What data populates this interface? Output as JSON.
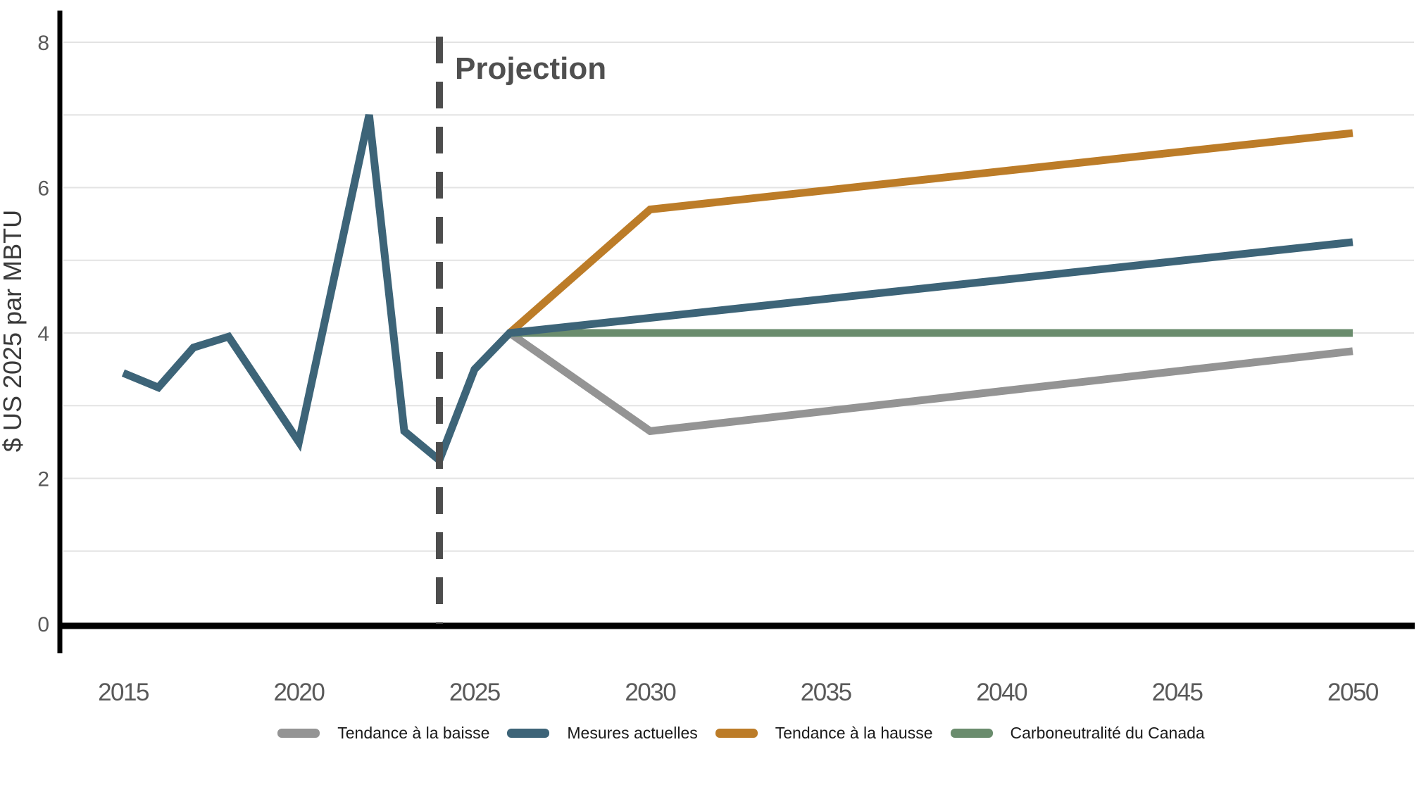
{
  "chart_data": {
    "type": "line",
    "title": "",
    "xlabel": "",
    "ylabel": "$ US 2025 par MBTU",
    "ylim": [
      0,
      8.4
    ],
    "xlim": [
      2013.3,
      2051.7
    ],
    "yticks": [
      0,
      2,
      4,
      6,
      8
    ],
    "gridline_values": [
      1,
      2,
      3,
      4,
      5,
      6,
      7,
      8
    ],
    "xticks": [
      2015,
      2020,
      2025,
      2030,
      2035,
      2040,
      2045,
      2050
    ],
    "grid": "horizontal",
    "legend_position": "bottom",
    "annotation": {
      "label": "Projection",
      "x": 2024,
      "style": "dashed-vertical-line"
    },
    "series": [
      {
        "name": "Tendance à la baisse",
        "color": "#949494",
        "x": [
          2026,
          2030,
          2050
        ],
        "y": [
          4.0,
          2.65,
          3.75
        ]
      },
      {
        "name": "Carboneutralité du Canada",
        "color": "#6A8C6D",
        "x": [
          2026,
          2050
        ],
        "y": [
          4.0,
          4.0
        ]
      },
      {
        "name": "Tendance à la hausse",
        "color": "#BC7C28",
        "x": [
          2026,
          2030,
          2050
        ],
        "y": [
          4.0,
          5.7,
          6.75
        ]
      },
      {
        "name": "Mesures actuelles",
        "color": "#3D6478",
        "x": [
          2015,
          2016,
          2017,
          2018,
          2020,
          2022,
          2023,
          2024,
          2025,
          2026,
          2050
        ],
        "y": [
          3.45,
          3.25,
          3.8,
          3.95,
          2.5,
          7.0,
          2.65,
          2.25,
          3.5,
          4.0,
          5.25
        ]
      }
    ],
    "legend": [
      {
        "label": "Tendance à la baisse",
        "color": "#949494"
      },
      {
        "label": "Mesures actuelles",
        "color": "#3D6478"
      },
      {
        "label": "Tendance à la hausse",
        "color": "#BC7C28"
      },
      {
        "label": "Carboneutralité du Canada",
        "color": "#6A8C6D"
      }
    ],
    "colors": {
      "axis": "#000000",
      "grid": "#E3E3E3",
      "tick_labels": "#595959",
      "annotation_line": "#4D4D4D",
      "annotation_text": "#4F4F4F",
      "axis_title": "#3A3A3A"
    }
  }
}
